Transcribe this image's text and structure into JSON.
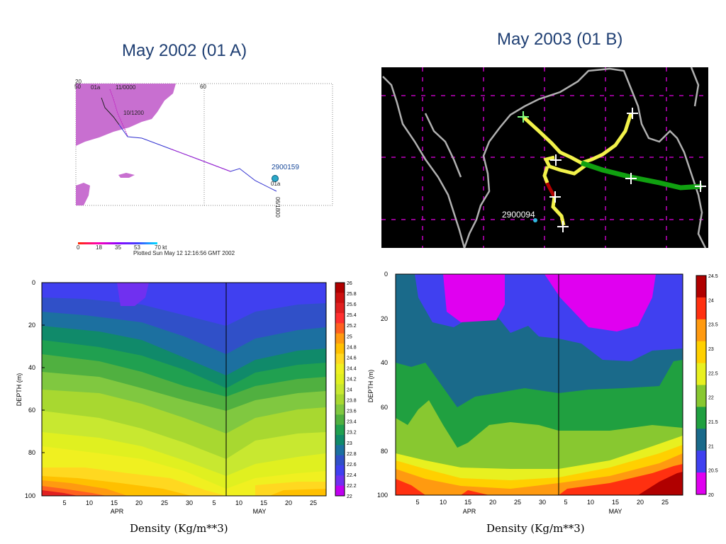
{
  "titles": {
    "left": "May 2002 (01 A)",
    "right": "May 2003 (01 B)"
  },
  "map_a": {
    "storm_label": "01a",
    "time_labels": [
      "11/0000",
      "10/1200",
      "06/1800"
    ],
    "float_id": "2900159",
    "float_label": "01a",
    "lat_label": "20",
    "lon_labels": [
      "50",
      "60"
    ],
    "speed_scale": {
      "labels": [
        "0",
        "18",
        "35",
        "53",
        "70 kt"
      ],
      "colors": [
        "#ff2a00",
        "#ff00b4",
        "#8c00ff",
        "#4040ff",
        "#00e0ff"
      ]
    },
    "plotted_text": "Plotted Sun May 12 12:16:56 GMT 2002",
    "colors": {
      "land": "#c86fd0",
      "track_blue": "#3030d0",
      "track_magenta": "#c020c0",
      "float": "#2aa8c8"
    }
  },
  "map_b": {
    "float_id": "2900094",
    "colors": {
      "background": "#000000",
      "coast": "#b0b0b0",
      "grid": "#c000c0",
      "track_yellow": "#f2f24a",
      "track_green": "#10a010",
      "track_red": "#b00000",
      "float": "#30b8e0"
    }
  },
  "panel_a": {
    "caption": "Density (Kg/m**3)",
    "ylabel": "DEPTH (m)",
    "y_ticks": [
      "0",
      "20",
      "40",
      "60",
      "80",
      "100"
    ],
    "x_ticks": [
      "5",
      "10",
      "15",
      "20",
      "25",
      "30",
      "5",
      "10",
      "15",
      "20",
      "25"
    ],
    "month_labels": [
      "APR",
      "MAY"
    ],
    "colorbar": {
      "labels": [
        "26",
        "25.8",
        "25.6",
        "25.4",
        "25.2",
        "25",
        "24.8",
        "24.6",
        "24.4",
        "24.2",
        "24",
        "23.8",
        "23.6",
        "23.4",
        "23.2",
        "23",
        "22.8",
        "22.6",
        "22.4",
        "22.2",
        "22"
      ],
      "colors": [
        "#b00000",
        "#cc1010",
        "#e02020",
        "#ff3030",
        "#ff6020",
        "#ff9a10",
        "#ffc000",
        "#ffd820",
        "#f0f020",
        "#e0f020",
        "#c8e830",
        "#a8d830",
        "#80c840",
        "#50b040",
        "#20a050",
        "#108a6a",
        "#1c70a0",
        "#3050c8",
        "#4040f0",
        "#7030f0",
        "#c000f0"
      ]
    }
  },
  "panel_b": {
    "caption": "Density (Kg/m**3)",
    "ylabel": "DEPTH (m)",
    "y_ticks": [
      "0",
      "20",
      "40",
      "60",
      "80",
      "100"
    ],
    "x_ticks": [
      "5",
      "10",
      "15",
      "20",
      "25",
      "30",
      "5",
      "10",
      "15",
      "20",
      "25"
    ],
    "month_labels": [
      "APR",
      "MAY"
    ],
    "colorbar": {
      "labels": [
        "24.5",
        "24",
        "23.5",
        "23",
        "22.5",
        "22",
        "21.5",
        "21",
        "20.5",
        "20"
      ],
      "colors": [
        "#b00000",
        "#ff3010",
        "#ff9a10",
        "#ffd000",
        "#e8f020",
        "#88c830",
        "#20a040",
        "#1a6a8a",
        "#4040f0",
        "#e000f0"
      ]
    }
  },
  "chart_data": [
    {
      "type": "line",
      "title": "May 2002 (01 A)",
      "series": [
        {
          "values": [
            [
              55.0,
              20.0
            ],
            [
              55.2,
              19.0
            ],
            [
              55.8,
              17.0
            ],
            [
              57.0,
              15.5
            ],
            [
              58.5,
              15.0
            ],
            [
              60.0,
              14.3
            ],
            [
              62.0,
              13.2
            ],
            [
              64.0,
              12.0
            ],
            [
              65.5,
              11.8
            ],
            [
              67.0,
              10.2
            ]
          ]
        }
      ],
      "xlabel": "",
      "ylabel": ""
    },
    {
      "type": "heatmap",
      "title": "",
      "xlabel": "",
      "ylabel": "DEPTH (m)",
      "x_categories": [
        "APR",
        "MAY"
      ],
      "ylim": [
        100,
        0
      ],
      "value_range": [
        22,
        26
      ],
      "levels": [
        22,
        22.2,
        22.4,
        22.6,
        22.8,
        23,
        23.2,
        23.4,
        23.6,
        23.8,
        24,
        24.2,
        24.4,
        24.6,
        24.8,
        25,
        25.2,
        25.4,
        25.6,
        25.8,
        26
      ],
      "caption": "Density (Kg/m**3)"
    },
    {
      "type": "heatmap",
      "title": "",
      "xlabel": "",
      "ylabel": "DEPTH (m)",
      "x_categories": [
        "APR",
        "MAY"
      ],
      "ylim": [
        100,
        0
      ],
      "value_range": [
        20,
        24.5
      ],
      "levels": [
        20,
        20.5,
        21,
        21.5,
        22,
        22.5,
        23,
        23.5,
        24,
        24.5
      ],
      "caption": "Density (Kg/m**3)"
    }
  ]
}
